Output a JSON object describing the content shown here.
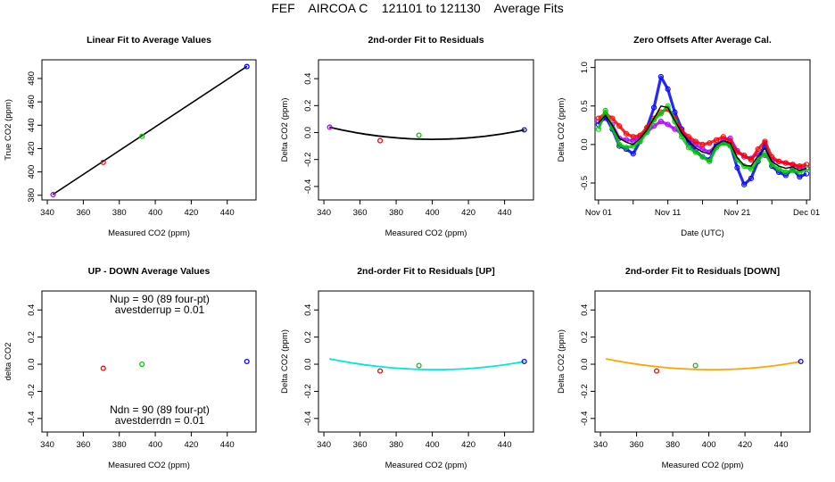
{
  "figure_title": "FEF    AIRCOA C    121101 to 121130    Average Fits",
  "colors": {
    "gray": "#999999",
    "red": "#ff0000",
    "green": "#00cc00",
    "blue": "#0000ff",
    "purple": "#aa00ff",
    "cyan": "#00e5e5",
    "orange": "#ffa500",
    "black": "#000000"
  },
  "chart_data": [
    {
      "id": "p1",
      "type": "scatter",
      "title": "Linear Fit to Average Values",
      "xlabel": "Measured CO2 (ppm)",
      "ylabel": "True CO2 (ppm)",
      "xlim": [
        337,
        456
      ],
      "ylim": [
        376,
        496
      ],
      "xticks": [
        340,
        360,
        380,
        400,
        420,
        440
      ],
      "yticks": [
        380,
        400,
        420,
        440,
        460,
        480
      ],
      "fit_line": {
        "x": [
          343,
          451
        ],
        "y": [
          380.6,
          490.4
        ],
        "color": "#000000"
      },
      "points": [
        {
          "x": 343.2,
          "y": 380.6,
          "color": "#aa00ff"
        },
        {
          "x": 371.1,
          "y": 408.2,
          "color": "#ff0000"
        },
        {
          "x": 392.6,
          "y": 430.5,
          "color": "#00cc00"
        },
        {
          "x": 450.9,
          "y": 490.2,
          "color": "#0000ff"
        }
      ]
    },
    {
      "id": "p2",
      "type": "scatter",
      "title": "2nd-order Fit to Residuals",
      "xlabel": "Measured CO2 (ppm)",
      "ylabel": "Delta CO2 (ppm)",
      "xlim": [
        337,
        456
      ],
      "ylim": [
        -0.5,
        0.54
      ],
      "xticks": [
        340,
        360,
        380,
        400,
        420,
        440
      ],
      "yticks": [
        -0.4,
        -0.2,
        0.0,
        0.2,
        0.4
      ],
      "curve": {
        "x": [
          343,
          451
        ],
        "y_ends": [
          0.04,
          0.02
        ],
        "y_min": -0.05,
        "x_min": 400,
        "color": "#000000"
      },
      "points": [
        {
          "x": 343.2,
          "y": 0.04,
          "color": "#aa00ff"
        },
        {
          "x": 371.1,
          "y": -0.06,
          "color": "#ff0000"
        },
        {
          "x": 392.6,
          "y": -0.02,
          "color": "#00cc00"
        },
        {
          "x": 450.9,
          "y": 0.02,
          "color": "#0000ff"
        }
      ]
    },
    {
      "id": "p3",
      "type": "line",
      "title": "Zero Offsets After Average Cal.",
      "xlabel": "Date (UTC)",
      "ylabel": "Delta CO2 (ppm)",
      "xlim": [
        -0.5,
        30.5
      ],
      "ylim": [
        -0.72,
        1.1
      ],
      "xticks": [
        0,
        10,
        20,
        30
      ],
      "xticklabels": [
        "Nov 01",
        "Nov 11",
        "Nov 21",
        "Dec 01"
      ],
      "yticks": [
        -0.5,
        0.0,
        0.5,
        1.0
      ],
      "minor_xticks": [
        5,
        15,
        25
      ],
      "series": [
        {
          "name": "purple",
          "color": "#aa00ff",
          "x": [
            0,
            1,
            2,
            3,
            4,
            5,
            6,
            7,
            8,
            9,
            10,
            11,
            12,
            13,
            14,
            15,
            16,
            17,
            18,
            19,
            20,
            21,
            22,
            23,
            24,
            25,
            26,
            27,
            28,
            29,
            30
          ],
          "y": [
            0.3,
            0.34,
            0.26,
            0.08,
            0.06,
            0.05,
            0.1,
            0.16,
            0.24,
            0.3,
            0.26,
            0.2,
            0.14,
            0.06,
            0.0,
            -0.06,
            -0.1,
            0.0,
            0.06,
            0.08,
            -0.08,
            -0.16,
            -0.18,
            -0.12,
            -0.14,
            -0.2,
            -0.22,
            -0.24,
            -0.26,
            -0.3,
            -0.3
          ]
        },
        {
          "name": "blue",
          "color": "#0000ff",
          "x": [
            0,
            1,
            2,
            3,
            4,
            5,
            6,
            7,
            8,
            9,
            10,
            11,
            12,
            13,
            14,
            15,
            16,
            17,
            18,
            19,
            20,
            21,
            22,
            23,
            24,
            25,
            26,
            27,
            28,
            29,
            30
          ],
          "y": [
            0.26,
            0.36,
            0.2,
            -0.02,
            -0.06,
            -0.12,
            0.04,
            0.22,
            0.48,
            0.88,
            0.72,
            0.42,
            0.2,
            0.02,
            -0.08,
            -0.16,
            -0.2,
            -0.02,
            0.02,
            0.0,
            -0.3,
            -0.52,
            -0.44,
            -0.22,
            0.02,
            -0.28,
            -0.36,
            -0.4,
            -0.32,
            -0.42,
            -0.38
          ]
        },
        {
          "name": "red",
          "color": "#ff0000",
          "x": [
            0,
            1,
            2,
            3,
            4,
            5,
            6,
            7,
            8,
            9,
            10,
            11,
            12,
            13,
            14,
            15,
            16,
            17,
            18,
            19,
            20,
            21,
            22,
            23,
            24,
            25,
            26,
            27,
            28,
            29,
            30
          ],
          "y": [
            0.34,
            0.4,
            0.34,
            0.24,
            0.14,
            0.1,
            0.12,
            0.22,
            0.34,
            0.42,
            0.46,
            0.34,
            0.18,
            0.1,
            0.04,
            0.0,
            0.02,
            0.06,
            0.1,
            0.04,
            -0.1,
            -0.14,
            -0.2,
            -0.06,
            0.04,
            -0.16,
            -0.22,
            -0.24,
            -0.26,
            -0.28,
            -0.26
          ]
        },
        {
          "name": "green",
          "color": "#00cc00",
          "x": [
            0,
            1,
            2,
            3,
            4,
            5,
            6,
            7,
            8,
            9,
            10,
            11,
            12,
            13,
            14,
            15,
            16,
            17,
            18,
            19,
            20,
            21,
            22,
            23,
            24,
            25,
            26,
            27,
            28,
            29,
            30
          ],
          "y": [
            0.2,
            0.44,
            0.22,
            0.0,
            -0.04,
            -0.02,
            0.04,
            0.16,
            0.32,
            0.4,
            0.5,
            0.3,
            0.1,
            -0.04,
            -0.1,
            -0.16,
            -0.22,
            -0.04,
            0.02,
            -0.02,
            -0.2,
            -0.28,
            -0.32,
            -0.2,
            -0.12,
            -0.26,
            -0.32,
            -0.36,
            -0.34,
            -0.36,
            -0.32
          ]
        },
        {
          "name": "mean",
          "color": "#000000",
          "x": [
            0,
            1,
            2,
            3,
            4,
            5,
            6,
            7,
            8,
            9,
            10,
            11,
            12,
            13,
            14,
            15,
            16,
            17,
            18,
            19,
            20,
            21,
            22,
            23,
            24,
            25,
            26,
            27,
            28,
            29,
            30
          ],
          "y": [
            0.28,
            0.38,
            0.25,
            0.08,
            0.03,
            0.0,
            0.08,
            0.19,
            0.34,
            0.5,
            0.48,
            0.31,
            0.15,
            0.04,
            -0.04,
            -0.1,
            -0.12,
            0.0,
            0.05,
            0.02,
            -0.17,
            -0.27,
            -0.28,
            -0.15,
            -0.05,
            -0.22,
            -0.28,
            -0.31,
            -0.29,
            -0.34,
            -0.31
          ]
        }
      ]
    },
    {
      "id": "p4",
      "type": "scatter",
      "title": "UP - DOWN Average Values",
      "xlabel": "Measured CO2 (ppm)",
      "ylabel": "delta CO2",
      "xlim": [
        337,
        456
      ],
      "ylim": [
        -0.5,
        0.54
      ],
      "xticks": [
        340,
        360,
        380,
        400,
        420,
        440
      ],
      "yticks": [
        -0.4,
        -0.2,
        0.0,
        0.2,
        0.4
      ],
      "annotations": {
        "nup": "Nup = 90 (89 four-pt)",
        "avestderrup": "avestderrup =  0.01",
        "ndn": "Ndn = 90 (89 four-pt)",
        "avestderrdn": "avestderrdn =  0.01"
      },
      "points": [
        {
          "x": 371.1,
          "y": -0.03,
          "color": "#ff0000"
        },
        {
          "x": 392.6,
          "y": 0.0,
          "color": "#00cc00"
        },
        {
          "x": 450.9,
          "y": 0.02,
          "color": "#0000ff"
        }
      ]
    },
    {
      "id": "p5",
      "type": "scatter",
      "title": "2nd-order Fit to Residuals [UP]",
      "xlabel": "Measured CO2 (ppm)",
      "ylabel": "Delta CO2 (ppm)",
      "xlim": [
        337,
        456
      ],
      "ylim": [
        -0.5,
        0.54
      ],
      "xticks": [
        340,
        360,
        380,
        400,
        420,
        440
      ],
      "yticks": [
        -0.4,
        -0.2,
        0.0,
        0.2,
        0.4
      ],
      "curve": {
        "x": [
          343,
          451
        ],
        "y_ends": [
          0.04,
          0.02
        ],
        "y_min": -0.04,
        "x_min": 402,
        "color": "#00e5e5"
      },
      "points": [
        {
          "x": 371.1,
          "y": -0.05,
          "color": "#ff0000"
        },
        {
          "x": 392.6,
          "y": -0.01,
          "color": "#00cc00"
        },
        {
          "x": 450.9,
          "y": 0.02,
          "color": "#0000ff"
        }
      ]
    },
    {
      "id": "p6",
      "type": "scatter",
      "title": "2nd-order Fit to Residuals [DOWN]",
      "xlabel": "Measured CO2 (ppm)",
      "ylabel": "Delta CO2 (ppm)",
      "xlim": [
        337,
        456
      ],
      "ylim": [
        -0.5,
        0.54
      ],
      "xticks": [
        340,
        360,
        380,
        400,
        420,
        440
      ],
      "yticks": [
        -0.4,
        -0.2,
        0.0,
        0.2,
        0.4
      ],
      "curve": {
        "x": [
          343,
          451
        ],
        "y_ends": [
          0.04,
          0.02
        ],
        "y_min": -0.04,
        "x_min": 402,
        "color": "#ffa500"
      },
      "points": [
        {
          "x": 371.1,
          "y": -0.05,
          "color": "#ff0000"
        },
        {
          "x": 392.6,
          "y": -0.01,
          "color": "#00cc00"
        },
        {
          "x": 450.9,
          "y": 0.02,
          "color": "#0000ff"
        }
      ]
    }
  ]
}
